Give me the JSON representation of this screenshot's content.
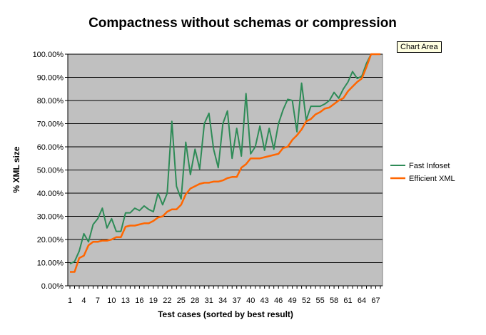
{
  "tooltip": "Chart Area",
  "colors": {
    "plot_bg": "#c0c0c0",
    "gridline": "#000000",
    "fast_infoset": "#2e8b57",
    "efficient_xml": "#ff6600"
  },
  "chart_data": {
    "type": "line",
    "title": "Compactness without schemas or compression",
    "xlabel": "Test cases (sorted by best result)",
    "ylabel": "% XML size",
    "x": [
      1,
      2,
      3,
      4,
      5,
      6,
      7,
      8,
      9,
      10,
      11,
      12,
      13,
      14,
      15,
      16,
      17,
      18,
      19,
      20,
      21,
      22,
      23,
      24,
      25,
      26,
      27,
      28,
      29,
      30,
      31,
      32,
      33,
      34,
      35,
      36,
      37,
      38,
      39,
      40,
      41,
      42,
      43,
      44,
      45,
      46,
      47,
      48,
      49,
      50,
      51,
      52,
      53,
      54,
      55,
      56,
      57,
      58,
      59,
      60,
      61,
      62,
      63,
      64,
      65,
      66,
      67,
      68
    ],
    "x_tick_labels": [
      "1",
      "4",
      "7",
      "10",
      "13",
      "16",
      "19",
      "22",
      "25",
      "28",
      "31",
      "34",
      "37",
      "40",
      "43",
      "46",
      "49",
      "52",
      "55",
      "58",
      "61",
      "64",
      "67"
    ],
    "y_tick_labels": [
      "0.00%",
      "10.00%",
      "20.00%",
      "30.00%",
      "40.00%",
      "50.00%",
      "60.00%",
      "70.00%",
      "80.00%",
      "90.00%",
      "100.00%"
    ],
    "ylim": [
      0,
      100
    ],
    "grid": true,
    "legend_position": "right",
    "series": [
      {
        "name": "Fast Infoset",
        "values": [
          9.5,
          10.5,
          15,
          22.5,
          19,
          26.5,
          29,
          33.5,
          25,
          29,
          23.5,
          23.5,
          31.5,
          31.5,
          33.5,
          32.5,
          34.5,
          33,
          32,
          40,
          35,
          40,
          71,
          43,
          37.5,
          62,
          48,
          59,
          50.5,
          70,
          74.5,
          59,
          51,
          70,
          75.5,
          55,
          68,
          56,
          83,
          57,
          60,
          69,
          58.5,
          68,
          59,
          70,
          76,
          80.5,
          80,
          66.5,
          87.5,
          71.5,
          77.5,
          77.5,
          77.5,
          78.5,
          80,
          83.5,
          81,
          85,
          88,
          92.5,
          89.5,
          90.5,
          96,
          100,
          100,
          100
        ]
      },
      {
        "name": "Efficient XML",
        "values": [
          6,
          6,
          12,
          13,
          17.5,
          19,
          19,
          19.5,
          19.5,
          20,
          21,
          21,
          25.5,
          26,
          26,
          26.5,
          27,
          27,
          28,
          29.5,
          30,
          32,
          33,
          33,
          35,
          39.5,
          42,
          43,
          44,
          44.5,
          44.5,
          45,
          45,
          45.5,
          46.5,
          47,
          47,
          51,
          52.5,
          55,
          55,
          55,
          55.5,
          56,
          56.5,
          57,
          59.5,
          60,
          63,
          65,
          67.5,
          71,
          72,
          74,
          75,
          76.5,
          77,
          78.5,
          80,
          81,
          84,
          86,
          88,
          89.5,
          94.5,
          100,
          100,
          100
        ]
      }
    ]
  }
}
